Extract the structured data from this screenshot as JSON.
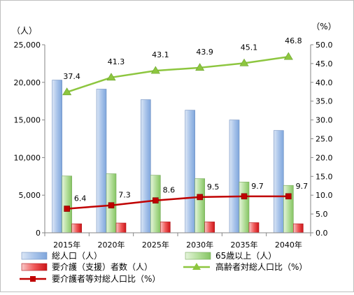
{
  "chart_data": {
    "type": "bar",
    "categories": [
      "2015年",
      "2020年",
      "2025年",
      "2030年",
      "2035年",
      "2040年"
    ],
    "series": [
      {
        "name": "総人口（人）",
        "kind": "bar",
        "axis": "left",
        "color": "#8eb4e3",
        "values": [
          20300,
          19100,
          17700,
          16300,
          15000,
          13600
        ]
      },
      {
        "name": "65歳以上（人）",
        "kind": "bar",
        "axis": "left",
        "color": "#9bd37f",
        "values": [
          7550,
          7850,
          7650,
          7200,
          6750,
          6300
        ]
      },
      {
        "name": "要介護（支援）者数（人）",
        "kind": "bar",
        "axis": "left",
        "color": "#e8252c",
        "values": [
          1200,
          1300,
          1450,
          1450,
          1350,
          1200
        ]
      },
      {
        "name": "高齢者対総人口比（%）",
        "kind": "line",
        "axis": "right",
        "color": "#8dc63f",
        "marker": "triangle",
        "values": [
          37.4,
          41.3,
          43.1,
          43.9,
          45.1,
          46.8
        ],
        "labels": [
          "37.4",
          "41.3",
          "43.1",
          "43.9",
          "45.1",
          "46.8"
        ]
      },
      {
        "name": "要介護者等対総人口比（%）",
        "kind": "line",
        "axis": "right",
        "color": "#c00000",
        "marker": "square",
        "values": [
          6.4,
          7.3,
          8.6,
          9.5,
          9.7,
          9.7
        ],
        "labels": [
          "6.4",
          "7.3",
          "8.6",
          "9.5",
          "9.7",
          "9.7"
        ]
      }
    ],
    "y_left": {
      "unit": "（人）",
      "ylim": [
        0,
        25000
      ],
      "ticks": [
        "0",
        "5,000",
        "10,000",
        "15,000",
        "20,000",
        "25,000"
      ]
    },
    "y_right": {
      "unit": "（%）",
      "ylim": [
        0,
        50
      ],
      "ticks": [
        "0.0",
        "5.0",
        "10.0",
        "15.0",
        "20.0",
        "25.0",
        "30.0",
        "35.0",
        "40.0",
        "45.0",
        "50.0"
      ]
    },
    "grid": false,
    "legend_placement": "bottom"
  }
}
